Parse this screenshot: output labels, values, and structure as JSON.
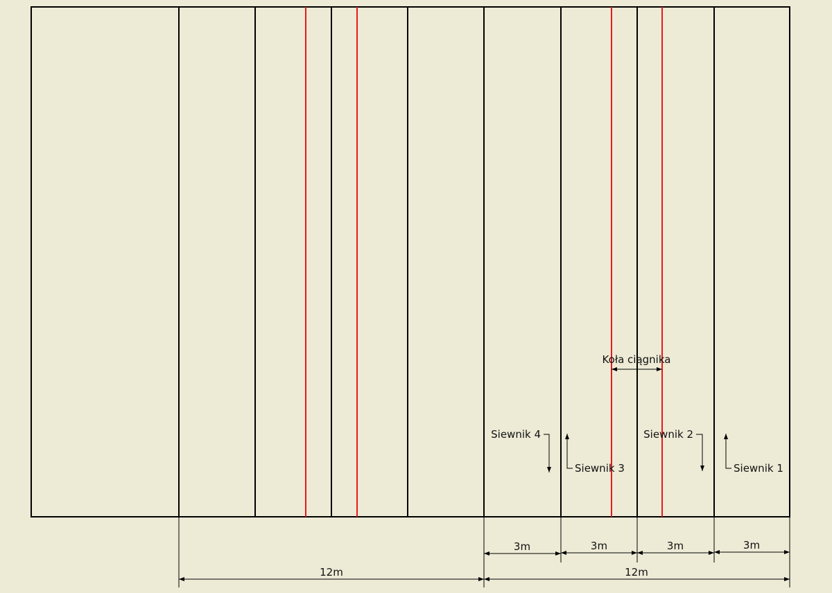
{
  "colors": {
    "background": "#edebd6",
    "line": "#000000",
    "wheel_track": "#e8191b"
  },
  "labels": {
    "wheels": "Koła ciągnika",
    "seeder_4": "Siewnik 4",
    "seeder_3": "Siewnik 3",
    "seeder_2": "Siewnik 2",
    "seeder_1": "Siewnik 1"
  },
  "dimensions": {
    "width_3m_a": "3m",
    "width_3m_b": "3m",
    "width_3m_c": "3m",
    "width_3m_d": "3m",
    "width_12m_left": "12m",
    "width_12m_right": "12m"
  }
}
